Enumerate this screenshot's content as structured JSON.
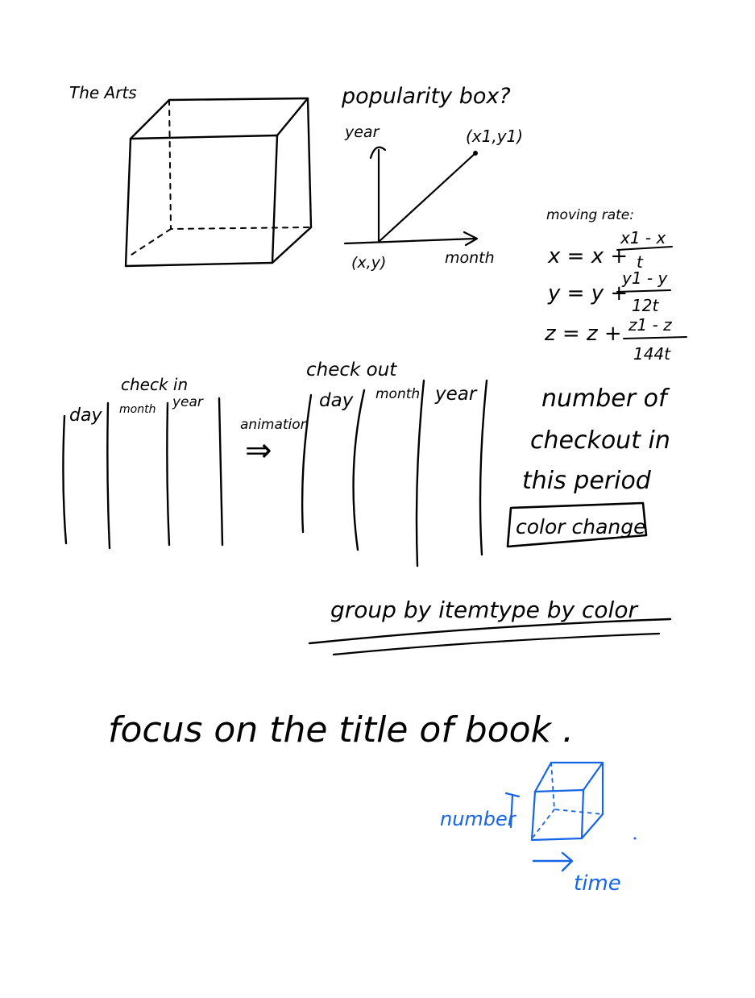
{
  "cube_sketch": {
    "label": "The Arts"
  },
  "popularity": {
    "title": "popularity box?",
    "y_axis_label": "year",
    "x_axis_label": "month",
    "origin_label": "(x,y)",
    "end_point_label": "(x1,y1)"
  },
  "moving_rate": {
    "heading": "moving rate:",
    "equations": [
      {
        "lhs": "x = x +",
        "num": "x1 - x",
        "den": "t"
      },
      {
        "lhs": "y = y +",
        "num": "y1 - y",
        "den": "12t"
      },
      {
        "lhs": "z = z +",
        "num": "z1 - z",
        "den": "144t"
      }
    ]
  },
  "checkin": {
    "title": "check in",
    "columns": [
      "day",
      "month",
      "year"
    ]
  },
  "animation_label": "animation",
  "animation_arrow": "⇒",
  "checkout": {
    "title": "check out",
    "columns": [
      "day",
      "month",
      "year"
    ]
  },
  "checkout_note": {
    "lines": [
      "number of",
      "checkout in",
      "this period"
    ],
    "boxed": "color change"
  },
  "group_note": "group by itemtype by color",
  "focus_note": "focus on the title of book .",
  "mini_cube": {
    "y_label": "number",
    "x_label": "time"
  }
}
